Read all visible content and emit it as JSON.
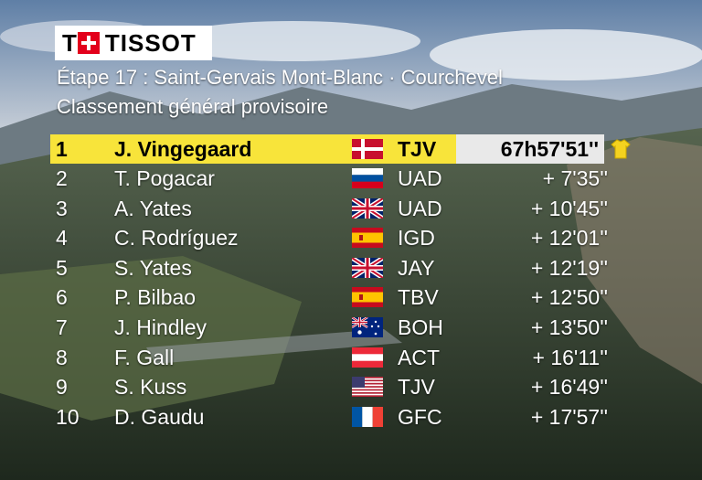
{
  "brand": {
    "logo_text": "TISSOT"
  },
  "header": {
    "stage_line": "Étape 17 : Saint-Gervais Mont-Blanc · Courchevel",
    "classification": "Classement général provisoire"
  },
  "colors": {
    "leader_band": "#f8e43a",
    "time_box": "#e9e9e9",
    "text": "#ffffff"
  },
  "standings": [
    {
      "rank": "1",
      "rider": "J. Vingegaard",
      "flag": "denmark-flag",
      "team": "TJV",
      "time": "67h57'51''"
    },
    {
      "rank": "2",
      "rider": "T. Pogacar",
      "flag": "slovenia-flag",
      "team": "UAD",
      "time": "+ 7'35''"
    },
    {
      "rank": "3",
      "rider": "A. Yates",
      "flag": "uk-flag",
      "team": "UAD",
      "time": "+ 10'45''"
    },
    {
      "rank": "4",
      "rider": "C. Rodríguez",
      "flag": "spain-flag",
      "team": "IGD",
      "time": "+ 12'01''"
    },
    {
      "rank": "5",
      "rider": "S. Yates",
      "flag": "uk-flag",
      "team": "JAY",
      "time": "+ 12'19''"
    },
    {
      "rank": "6",
      "rider": "P. Bilbao",
      "flag": "spain-flag",
      "team": "TBV",
      "time": "+ 12'50''"
    },
    {
      "rank": "7",
      "rider": "J. Hindley",
      "flag": "australia-flag",
      "team": "BOH",
      "time": "+ 13'50''"
    },
    {
      "rank": "8",
      "rider": "F. Gall",
      "flag": "austria-flag",
      "team": "ACT",
      "time": "+ 16'11''"
    },
    {
      "rank": "9",
      "rider": "S. Kuss",
      "flag": "usa-flag",
      "team": "TJV",
      "time": "+ 16'49''"
    },
    {
      "rank": "10",
      "rider": "D. Gaudu",
      "flag": "france-flag",
      "team": "GFC",
      "time": "+ 17'57''"
    }
  ]
}
